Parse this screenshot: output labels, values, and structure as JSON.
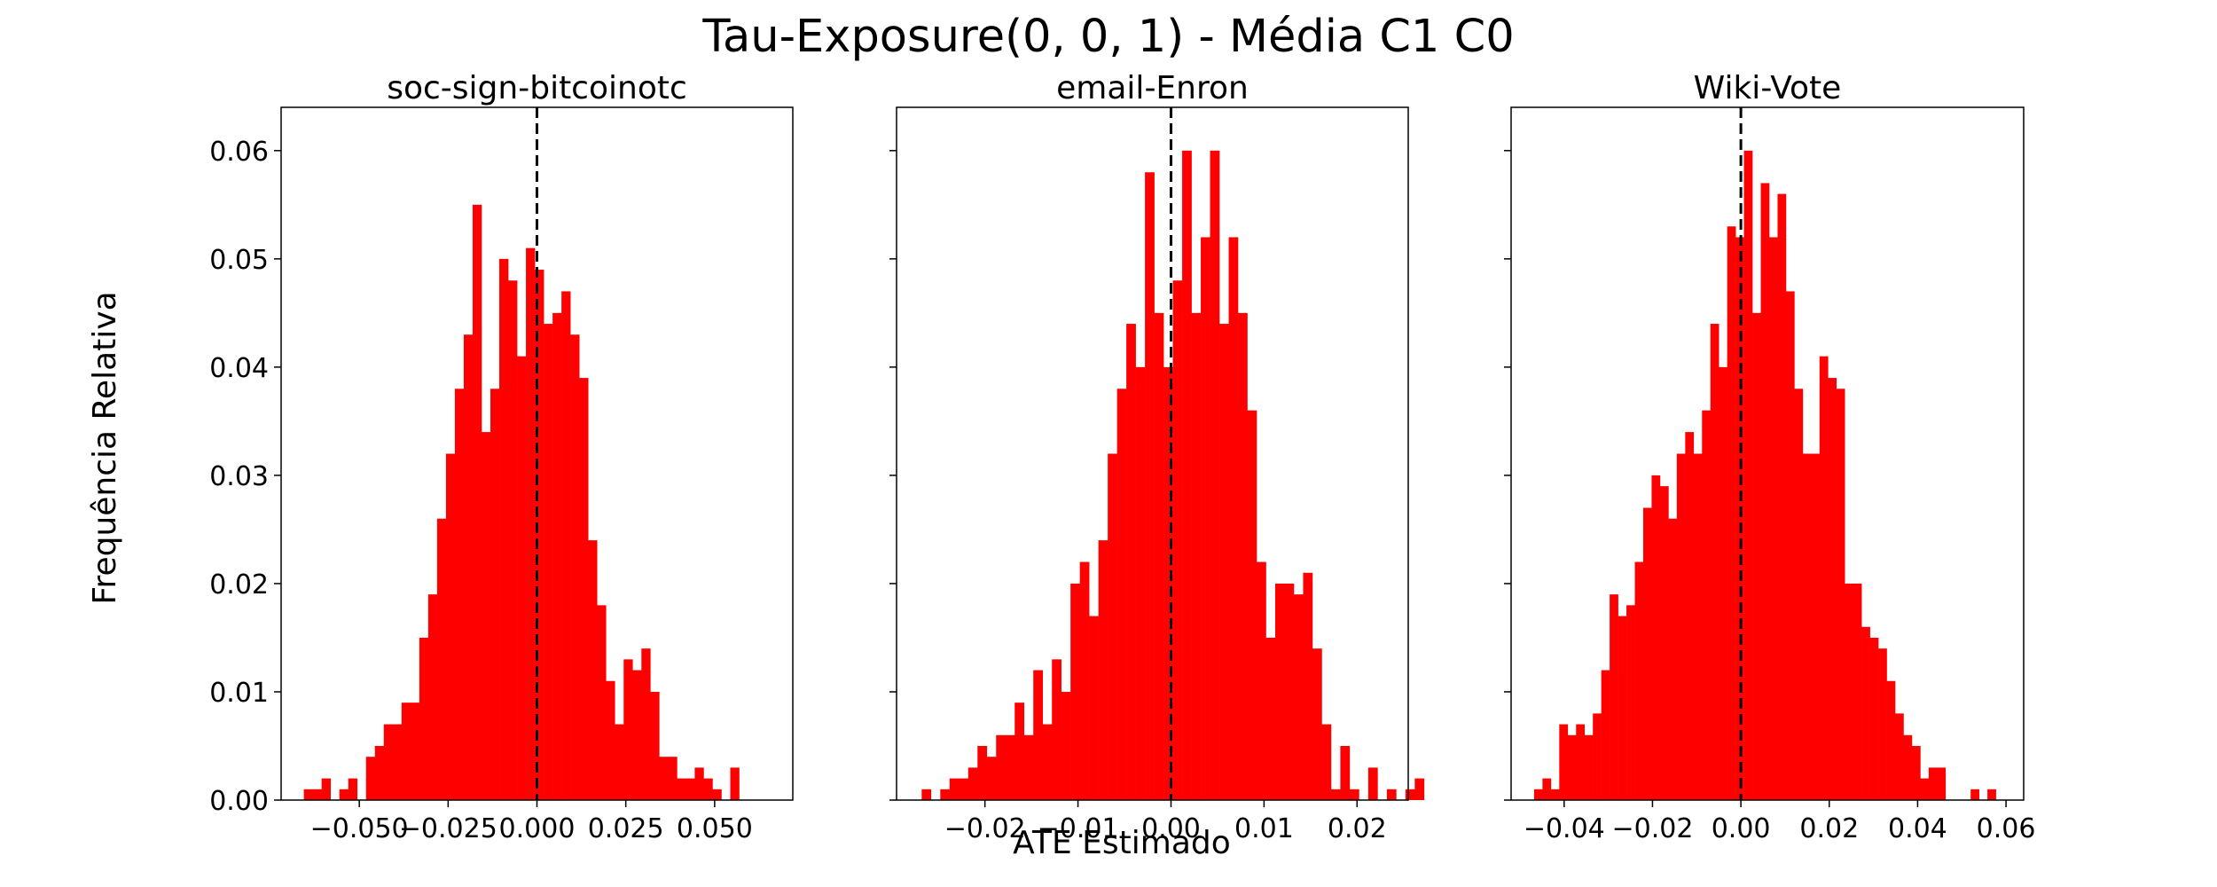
{
  "suptitle": "Tau-Exposure(0, 0, 1) - Média C1 C0",
  "shared": {
    "xlabel": "ATE Estimado",
    "ylabel": "Frequência Relativa",
    "yticks": [
      0.0,
      0.01,
      0.02,
      0.03,
      0.04,
      0.05,
      0.06
    ],
    "ytick_labels": [
      "0.00",
      "0.01",
      "0.02",
      "0.03",
      "0.04",
      "0.05",
      "0.06"
    ],
    "ylim": [
      0,
      0.064
    ],
    "bar_color": "#ff0000"
  },
  "chart_data": [
    {
      "type": "bar",
      "title": "soc-sign-bitcoinotc",
      "xlim": [
        -0.072,
        0.072
      ],
      "xticks": [
        -0.05,
        -0.025,
        0.0,
        0.025,
        0.05
      ],
      "xtick_labels": [
        "−0.050",
        "−0.025",
        "0.000",
        "0.025",
        "0.050"
      ],
      "ref_line": 0.0,
      "bins": {
        "start": -0.0656,
        "width": 0.0025
      },
      "values": [
        0.001,
        0.001,
        0.002,
        0.0,
        0.001,
        0.002,
        0.0,
        0.004,
        0.005,
        0.007,
        0.007,
        0.009,
        0.009,
        0.015,
        0.019,
        0.026,
        0.032,
        0.038,
        0.043,
        0.055,
        0.034,
        0.038,
        0.05,
        0.048,
        0.041,
        0.051,
        0.049,
        0.044,
        0.045,
        0.047,
        0.043,
        0.039,
        0.024,
        0.018,
        0.011,
        0.007,
        0.013,
        0.012,
        0.014,
        0.01,
        0.004,
        0.004,
        0.002,
        0.002,
        0.003,
        0.002,
        0.001,
        0.0,
        0.003
      ]
    },
    {
      "type": "bar",
      "title": "email-Enron",
      "xlim": [
        -0.0295,
        0.0255
      ],
      "xticks": [
        -0.02,
        -0.01,
        0.0,
        0.01,
        0.02
      ],
      "xtick_labels": [
        "−0.02",
        "−0.01",
        "0.00",
        "0.01",
        "0.02"
      ],
      "ref_line": 0.0,
      "bins": {
        "start": -0.0268,
        "width": 0.001
      },
      "values": [
        0.001,
        0.0,
        0.001,
        0.002,
        0.002,
        0.003,
        0.005,
        0.004,
        0.006,
        0.006,
        0.009,
        0.006,
        0.012,
        0.007,
        0.013,
        0.01,
        0.02,
        0.022,
        0.017,
        0.024,
        0.032,
        0.038,
        0.044,
        0.04,
        0.058,
        0.045,
        0.04,
        0.048,
        0.06,
        0.045,
        0.052,
        0.06,
        0.044,
        0.052,
        0.045,
        0.036,
        0.022,
        0.015,
        0.02,
        0.02,
        0.019,
        0.021,
        0.014,
        0.007,
        0.001,
        0.005,
        0.001,
        0.0,
        0.003,
        0.0,
        0.001,
        0.0,
        0.001,
        0.002,
        0.0
      ]
    },
    {
      "type": "bar",
      "title": "Wiki-Vote",
      "xlim": [
        -0.052,
        0.064
      ],
      "xticks": [
        -0.04,
        -0.02,
        0.0,
        0.02,
        0.04,
        0.06
      ],
      "xtick_labels": [
        "−0.04",
        "−0.02",
        "0.00",
        "0.02",
        "0.04",
        "0.06"
      ],
      "ref_line": 0.0,
      "bins": {
        "start": -0.0468,
        "width": 0.0019
      },
      "values": [
        0.001,
        0.002,
        0.001,
        0.007,
        0.006,
        0.007,
        0.006,
        0.008,
        0.012,
        0.019,
        0.017,
        0.018,
        0.022,
        0.027,
        0.03,
        0.029,
        0.026,
        0.032,
        0.034,
        0.032,
        0.036,
        0.044,
        0.04,
        0.053,
        0.052,
        0.06,
        0.045,
        0.057,
        0.052,
        0.056,
        0.047,
        0.038,
        0.032,
        0.032,
        0.041,
        0.039,
        0.038,
        0.02,
        0.02,
        0.016,
        0.015,
        0.014,
        0.011,
        0.008,
        0.006,
        0.005,
        0.002,
        0.003,
        0.003,
        0.0,
        0.0,
        0.0,
        0.001,
        0.0,
        0.001,
        0.0
      ]
    }
  ]
}
